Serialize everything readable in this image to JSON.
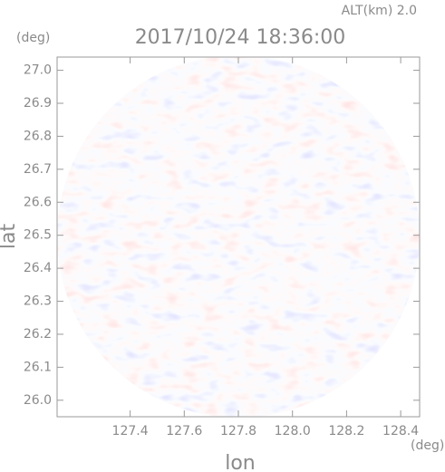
{
  "chart_data": {
    "type": "ppi",
    "title": "2017/10/24 18:36:00",
    "annotation": "ALT(km) 2.0",
    "xlabel": "lon",
    "ylabel": "lat",
    "xunit": "(deg)",
    "yunit": "(deg)",
    "xlim": [
      127.13,
      128.47
    ],
    "ylim": [
      25.95,
      27.04
    ],
    "xticks": [
      127.4,
      127.6,
      127.8,
      128.0,
      128.2,
      128.4
    ],
    "yticks": [
      26.0,
      26.1,
      26.2,
      26.3,
      26.4,
      26.5,
      26.6,
      26.7,
      26.8,
      26.9,
      27.0
    ]
  }
}
